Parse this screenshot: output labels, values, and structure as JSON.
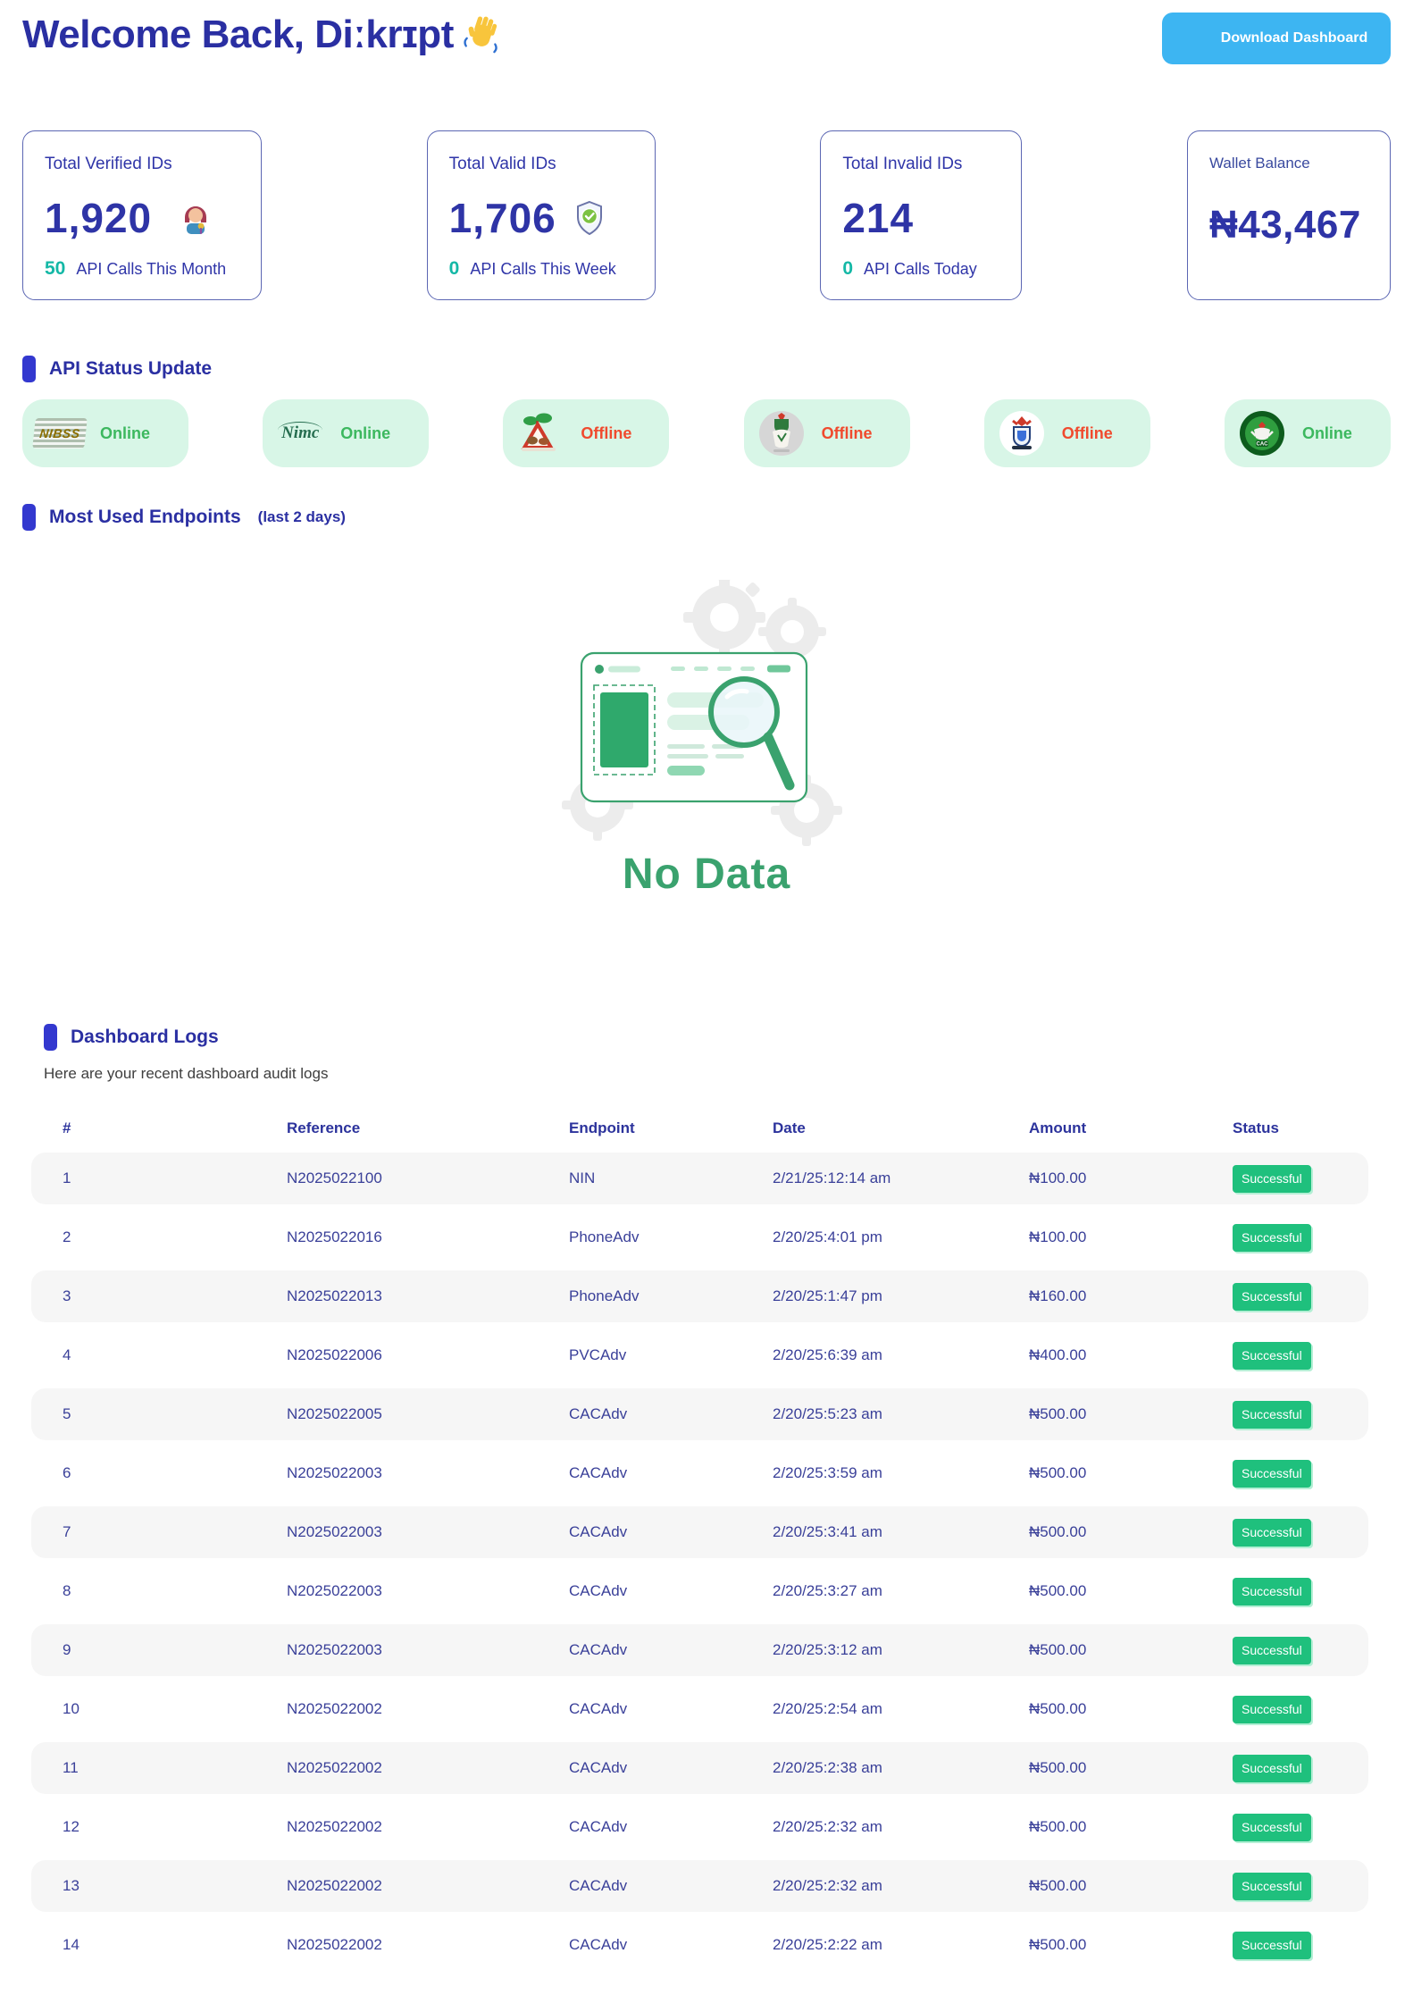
{
  "header": {
    "title": "Welcome Back, Diːkrɪpt",
    "download_button": "Download Dashboard"
  },
  "icons": {
    "wave": "wave-icon",
    "verified_person": "woman-avatar-icon",
    "valid_shield": "shield-check-icon",
    "providers": [
      "nibss-logo-icon",
      "nimc-logo-icon",
      "frsc-logo-icon",
      "inec-logo-icon",
      "nis-logo-icon",
      "cac-logo-icon"
    ]
  },
  "stats": [
    {
      "label": "Total Verified IDs",
      "value": "1,920",
      "sub_value": "50",
      "sub_label": "API Calls This Month"
    },
    {
      "label": "Total Valid IDs",
      "value": "1,706",
      "sub_value": "0",
      "sub_label": "API Calls This Week"
    },
    {
      "label": "Total Invalid IDs",
      "value": "214",
      "sub_value": "0",
      "sub_label": "API Calls Today"
    },
    {
      "label": "Wallet Balance",
      "value": "₦43,467"
    }
  ],
  "api_status": {
    "heading": "API Status Update",
    "providers": [
      {
        "name": "NIBSS",
        "status": "Online"
      },
      {
        "name": "NIMC",
        "status": "Online"
      },
      {
        "name": "FRSC",
        "status": "Offline"
      },
      {
        "name": "INEC",
        "status": "Offline"
      },
      {
        "name": "NIS",
        "status": "Offline"
      },
      {
        "name": "CAC",
        "status": "Online"
      }
    ]
  },
  "endpoints": {
    "heading": "Most Used Endpoints",
    "heading_suffix": "(last 2 days)",
    "empty_text": "No Data"
  },
  "logs": {
    "heading": "Dashboard Logs",
    "subtitle": "Here are your recent dashboard audit logs",
    "columns": [
      "#",
      "Reference",
      "Endpoint",
      "Date",
      "Amount",
      "Status"
    ],
    "rows": [
      [
        "1",
        "N2025022100",
        "NIN",
        "2/21/25:12:14 am",
        "₦100.00",
        "Successful"
      ],
      [
        "2",
        "N2025022016",
        "PhoneAdv",
        "2/20/25:4:01 pm",
        "₦100.00",
        "Successful"
      ],
      [
        "3",
        "N2025022013",
        "PhoneAdv",
        "2/20/25:1:47 pm",
        "₦160.00",
        "Successful"
      ],
      [
        "4",
        "N2025022006",
        "PVCAdv",
        "2/20/25:6:39 am",
        "₦400.00",
        "Successful"
      ],
      [
        "5",
        "N2025022005",
        "CACAdv",
        "2/20/25:5:23 am",
        "₦500.00",
        "Successful"
      ],
      [
        "6",
        "N2025022003",
        "CACAdv",
        "2/20/25:3:59 am",
        "₦500.00",
        "Successful"
      ],
      [
        "7",
        "N2025022003",
        "CACAdv",
        "2/20/25:3:41 am",
        "₦500.00",
        "Successful"
      ],
      [
        "8",
        "N2025022003",
        "CACAdv",
        "2/20/25:3:27 am",
        "₦500.00",
        "Successful"
      ],
      [
        "9",
        "N2025022003",
        "CACAdv",
        "2/20/25:3:12 am",
        "₦500.00",
        "Successful"
      ],
      [
        "10",
        "N2025022002",
        "CACAdv",
        "2/20/25:2:54 am",
        "₦500.00",
        "Successful"
      ],
      [
        "11",
        "N2025022002",
        "CACAdv",
        "2/20/25:2:38 am",
        "₦500.00",
        "Successful"
      ],
      [
        "12",
        "N2025022002",
        "CACAdv",
        "2/20/25:2:32 am",
        "₦500.00",
        "Successful"
      ],
      [
        "13",
        "N2025022002",
        "CACAdv",
        "2/20/25:2:32 am",
        "₦500.00",
        "Successful"
      ],
      [
        "14",
        "N2025022002",
        "CACAdv",
        "2/20/25:2:22 am",
        "₦500.00",
        "Successful"
      ]
    ]
  },
  "colors": {
    "accent_indigo": "#2a2fa2",
    "marker_indigo": "#3338cf",
    "teal": "#14b8a6",
    "button_blue": "#3db5f2",
    "pill_bg": "#d8f6e7",
    "online_green": "#3cb85f",
    "offline_red": "#f04a2e",
    "badge_green": "#1fc07d",
    "nodata_green": "#3aa26e",
    "row_stripe": "#f6f6f6"
  }
}
